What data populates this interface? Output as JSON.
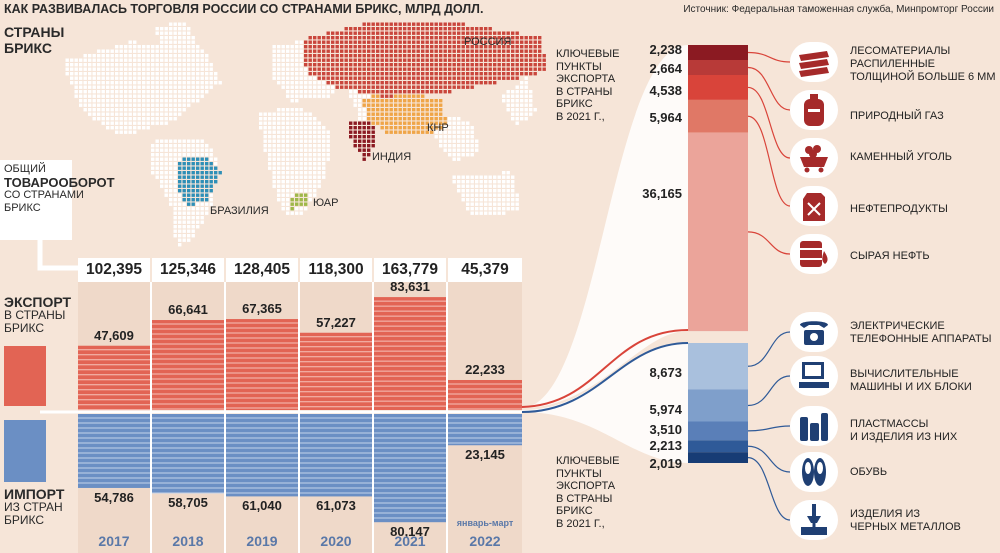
{
  "title": "КАК РАЗВИВАЛАСЬ ТОРГОВЛЯ РОССИИ СО СТРАНАМИ БРИКС, МЛРД ДОЛЛ.",
  "source": "Источник: Федеральная таможенная служба, Минпромторг России",
  "map": {
    "heading": [
      "СТРАНЫ",
      "БРИКС"
    ],
    "countries": {
      "russia": "РОССИЯ",
      "china": "КНР",
      "india": "ИНДИЯ",
      "brazil": "БРАЗИЛИЯ",
      "sa": "ЮАР"
    }
  },
  "labels": {
    "turnover": [
      "ОБЩИЙ",
      "ТОВАРООБОРОТ",
      "СО СТРАНАМИ",
      "БРИКС"
    ],
    "export": [
      "ЭКСПОРТ",
      "В СТРАНЫ",
      "БРИКС"
    ],
    "import": [
      "ИМПОРТ",
      "ИЗ СТРАН",
      "БРИКС"
    ],
    "export_key": [
      "КЛЮЧЕВЫЕ",
      "ПУНКТЫ",
      "ЭКСПОРТА",
      "В СТРАНЫ",
      "БРИКС",
      "В 2021 Г.,"
    ],
    "import_key": [
      "КЛЮЧЕВЫЕ",
      "ПУНКТЫ",
      "ЭКСПОРТА",
      "В СТРАНЫ",
      "БРИКС",
      "В 2021 Г.,"
    ]
  },
  "colors": {
    "export": "#e26454",
    "import": "#6b8fc4",
    "background": "#f6e5d8"
  },
  "chart_data": [
    {
      "type": "bar",
      "categories": [
        "2017",
        "2018",
        "2019",
        "2020",
        "2021",
        "2022"
      ],
      "category_note": "январь-март",
      "totals": [
        "102,395",
        "125,346",
        "128,405",
        "118,300",
        "163,779",
        "45,379"
      ],
      "series": [
        {
          "name": "ЭКСПОРТ В СТРАНЫ БРИКС",
          "values": [
            47.609,
            66.641,
            67.365,
            57.227,
            83.631,
            22.233
          ],
          "labels": [
            "47,609",
            "66,641",
            "67,365",
            "57,227",
            "83,631",
            "22,233"
          ]
        },
        {
          "name": "ИМПОРТ ИЗ СТРАН БРИКС",
          "values": [
            54.786,
            58.705,
            61.04,
            61.073,
            80.147,
            23.145
          ],
          "labels": [
            "54,786",
            "58,705",
            "61,040",
            "61,073",
            "80,147",
            "23,145"
          ]
        }
      ]
    },
    {
      "type": "bar",
      "orientation": "stacked-vertical",
      "title": "КЛЮЧЕВЫЕ ПУНКТЫ ЭКСПОРТА В СТРАНЫ БРИКС В 2021 Г.,",
      "categories": [
        "ЛЕСОМАТЕРИАЛЫ РАСПИЛЕННЫЕ ТОЛЩИНОЙ БОЛЬШЕ 6 ММ",
        "ПРИРОДНЫЙ ГАЗ",
        "КАМЕННЫЙ УГОЛЬ",
        "НЕФТЕПРОДУКТЫ",
        "СЫРАЯ НЕФТЬ"
      ],
      "values": [
        2.238,
        2.664,
        4.538,
        5.964,
        36.165
      ],
      "labels": [
        "2,238",
        "2,664",
        "4,538",
        "5,964",
        "36,165"
      ],
      "colors": [
        "#8b1a22",
        "#b83a38",
        "#d9443a",
        "#e07866",
        "#eba49a"
      ]
    },
    {
      "type": "bar",
      "orientation": "stacked-vertical",
      "title": "КЛЮЧЕВЫЕ ПУНКТЫ ЭКСПОРТА В СТРАНЫ БРИКС В 2021 Г.,",
      "categories": [
        "ЭЛЕКТРИЧЕСКИЕ ТЕЛЕФОННЫЕ АППАРАТЫ",
        "ВЫЧИСЛИТЕЛЬНЫЕ МАШИНЫ И ИХ БЛОКИ",
        "ПЛАСТМАССЫ И ИЗДЕЛИЯ ИЗ НИХ",
        "ОБУВЬ",
        "ИЗДЕЛИЯ ИЗ ЧЕРНЫХ МЕТАЛЛОВ"
      ],
      "values": [
        8.673,
        5.974,
        3.51,
        2.213,
        2.019
      ],
      "labels": [
        "8,673",
        "5,974",
        "3,510",
        "2,213",
        "2,019"
      ],
      "colors": [
        "#a9c0dd",
        "#7f9fcb",
        "#5a7fb8",
        "#2f5a98",
        "#173c75"
      ]
    }
  ],
  "export_items": [
    {
      "label_lines": [
        "ЛЕСОМАТЕРИАЛЫ",
        "РАСПИЛЕННЫЕ",
        "ТОЛЩИНОЙ БОЛЬШЕ 6 ММ"
      ],
      "icon": "lumber-icon"
    },
    {
      "label_lines": [
        "ПРИРОДНЫЙ ГАЗ"
      ],
      "icon": "gas-cylinder-icon"
    },
    {
      "label_lines": [
        "КАМЕННЫЙ УГОЛЬ"
      ],
      "icon": "coal-cart-icon"
    },
    {
      "label_lines": [
        "НЕФТЕПРОДУКТЫ"
      ],
      "icon": "canister-icon"
    },
    {
      "label_lines": [
        "СЫРАЯ НЕФТЬ"
      ],
      "icon": "oil-barrel-icon"
    }
  ],
  "import_items": [
    {
      "label_lines": [
        "ЭЛЕКТРИЧЕСКИЕ",
        "ТЕЛЕФОННЫЕ АППАРАТЫ"
      ],
      "icon": "telephone-icon"
    },
    {
      "label_lines": [
        "ВЫЧИСЛИТЕЛЬНЫЕ",
        "МАШИНЫ И ИХ БЛОКИ"
      ],
      "icon": "computer-icon"
    },
    {
      "label_lines": [
        "ПЛАСТМАССЫ",
        "И ИЗДЕЛИЯ ИЗ НИХ"
      ],
      "icon": "plastic-bottles-icon"
    },
    {
      "label_lines": [
        "ОБУВЬ"
      ],
      "icon": "shoes-icon"
    },
    {
      "label_lines": [
        "ИЗДЕЛИЯ ИЗ",
        "ЧЕРНЫХ МЕТАЛЛОВ"
      ],
      "icon": "metal-hook-icon"
    }
  ]
}
